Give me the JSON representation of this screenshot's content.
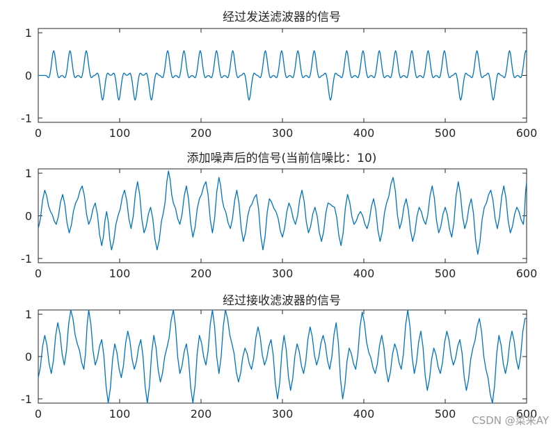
{
  "chart_data": [
    {
      "type": "line",
      "title": "经过发送滤波器的信号",
      "xlim": [
        0,
        600
      ],
      "ylim": [
        -1.1,
        1.1
      ],
      "xticks": [
        0,
        100,
        200,
        300,
        400,
        500,
        600
      ],
      "yticks": [
        -1,
        0,
        1
      ],
      "line_color": "#0072BD",
      "symbols": [
        1,
        1,
        1,
        -1,
        -1,
        -1,
        -1,
        1,
        1,
        1,
        1,
        1,
        -1,
        1,
        1,
        1,
        1,
        -1,
        1,
        1,
        1,
        1,
        1,
        1,
        1,
        -1,
        1,
        -1,
        1,
        1
      ],
      "symbol_period": 20,
      "first_peak_x": 19,
      "peak_amplitude": 0.58,
      "trough_amplitude": -0.58,
      "end_point": [
        600,
        0.55
      ]
    },
    {
      "type": "line",
      "title": "添加噪声后的信号(当前信噪比：10)",
      "xlim": [
        0,
        600
      ],
      "ylim": [
        -1.1,
        1.1
      ],
      "xticks": [
        0,
        100,
        200,
        300,
        400,
        500,
        600
      ],
      "yticks": [
        -1,
        0,
        1
      ],
      "line_color": "#0072BD",
      "x": [
        0,
        8,
        15,
        22,
        30,
        38,
        46,
        54,
        62,
        70,
        78,
        84,
        90,
        98,
        106,
        114,
        122,
        130,
        138,
        146,
        154,
        160,
        166,
        174,
        182,
        190,
        198,
        206,
        214,
        222,
        228,
        236,
        244,
        252,
        260,
        268,
        276,
        284,
        292,
        300,
        308,
        316,
        324,
        332,
        340,
        348,
        356,
        364,
        372,
        380,
        388,
        396,
        404,
        412,
        420,
        428,
        436,
        444,
        452,
        460,
        468,
        476,
        484,
        492,
        500,
        508,
        516,
        524,
        532,
        540,
        548,
        556,
        564,
        572,
        580,
        588,
        596,
        600
      ],
      "y": [
        -0.3,
        0.6,
        0.1,
        -0.2,
        0.5,
        -0.4,
        0.3,
        0.7,
        -0.2,
        0.3,
        -0.7,
        0.1,
        -0.8,
        0.0,
        0.6,
        -0.3,
        0.8,
        -0.4,
        0.2,
        -0.8,
        0.1,
        1.05,
        0.3,
        -0.2,
        0.7,
        -0.5,
        0.4,
        0.8,
        -0.4,
        0.9,
        0.2,
        -0.3,
        0.6,
        -0.6,
        0.2,
        0.5,
        -0.8,
        0.4,
        0.1,
        -0.5,
        0.3,
        -0.2,
        0.6,
        -0.4,
        0.2,
        -0.6,
        0.3,
        0.2,
        -0.7,
        0.5,
        -0.2,
        0.1,
        -0.3,
        0.4,
        -0.6,
        0.3,
        0.9,
        -0.3,
        0.4,
        -0.6,
        0.2,
        -0.2,
        0.7,
        -0.4,
        0.2,
        -0.5,
        0.8,
        -0.3,
        0.4,
        -0.9,
        0.2,
        0.6,
        -0.3,
        0.7,
        -0.4,
        0.2,
        -0.2,
        0.8
      ]
    },
    {
      "type": "line",
      "title": "经过接收滤波器的信号",
      "xlim": [
        0,
        600
      ],
      "ylim": [
        -1.1,
        1.1
      ],
      "xticks": [
        0,
        100,
        200,
        300,
        400,
        500,
        600
      ],
      "yticks": [
        -1,
        0,
        1
      ],
      "line_color": "#0072BD",
      "x": [
        0,
        8,
        16,
        24,
        32,
        40,
        48,
        56,
        62,
        70,
        78,
        86,
        94,
        102,
        110,
        118,
        126,
        134,
        142,
        150,
        158,
        166,
        174,
        182,
        190,
        198,
        206,
        214,
        222,
        230,
        238,
        246,
        254,
        262,
        270,
        278,
        286,
        294,
        302,
        310,
        318,
        326,
        334,
        342,
        350,
        358,
        366,
        374,
        382,
        390,
        398,
        406,
        414,
        422,
        430,
        438,
        446,
        454,
        462,
        470,
        478,
        486,
        494,
        502,
        510,
        518,
        526,
        534,
        542,
        550,
        558,
        566,
        574,
        582,
        590,
        598,
        600
      ],
      "y": [
        -0.5,
        0.5,
        -0.4,
        0.8,
        -0.2,
        1.1,
        0.3,
        -0.3,
        1.1,
        -0.2,
        0.4,
        -1.1,
        0.3,
        -0.5,
        0.6,
        -0.3,
        0.4,
        -1.1,
        0.5,
        -0.6,
        0.2,
        1.1,
        -0.4,
        0.3,
        -1.1,
        0.5,
        -0.2,
        1.1,
        -0.4,
        1.1,
        0.3,
        -0.6,
        0.2,
        -0.3,
        0.7,
        -0.2,
        0.4,
        -1.0,
        0.5,
        -0.8,
        0.3,
        -0.4,
        0.7,
        -0.2,
        0.5,
        -0.3,
        0.8,
        -1.0,
        0.2,
        -0.3,
        1.05,
        0.1,
        -0.4,
        0.5,
        -0.6,
        0.3,
        -0.3,
        1.1,
        -0.4,
        0.6,
        -0.8,
        0.2,
        -0.4,
        0.6,
        -0.2,
        0.4,
        -0.8,
        0.2,
        0.9,
        -0.3,
        -1.1,
        0.5,
        -0.4,
        0.6,
        -0.3,
        0.9,
        0.9
      ]
    }
  ],
  "watermark": "CSDN @菜来AY"
}
